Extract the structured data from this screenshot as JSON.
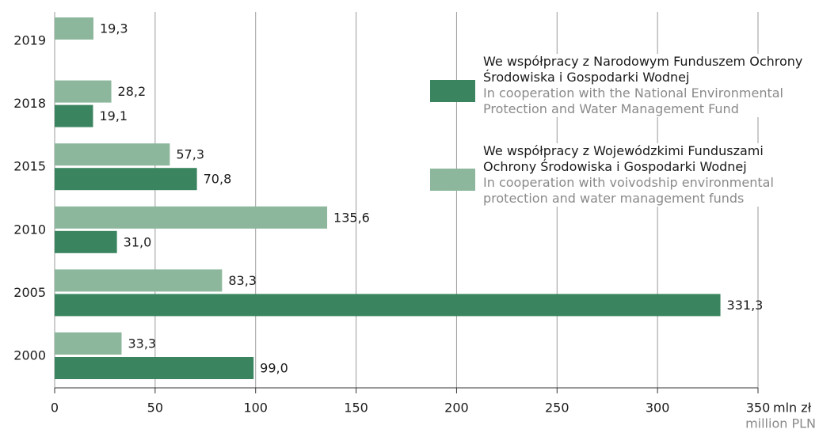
{
  "chart_data": {
    "type": "bar",
    "orientation": "horizontal",
    "categories": [
      "2019",
      "2018",
      "2015",
      "2010",
      "2005",
      "2000"
    ],
    "series": [
      {
        "name": "We współpracy z Wojewódzkimi Funduszami Ochrony Środowiska i Gospodarki Wodnej",
        "name_en": "In cooperation with voivodship environmental protection and water management funds",
        "color": "#8db79c",
        "values": [
          19.3,
          28.2,
          57.3,
          135.6,
          83.3,
          33.3
        ],
        "value_labels": [
          "19,3",
          "28,2",
          "57,3",
          "135,6",
          "83,3",
          "33,3"
        ]
      },
      {
        "name": "We współpracy z Narodowym Funduszem Ochrony Środowiska i Gospodarki Wodnej",
        "name_en": "In cooperation with the National Environmental Protection and Water Management Fund",
        "color": "#3a8560",
        "values": [
          null,
          19.1,
          70.8,
          31.0,
          331.3,
          99.0
        ],
        "value_labels": [
          null,
          "19,1",
          "70,8",
          "31,0",
          "331,3",
          "99,0"
        ]
      }
    ],
    "xlabel": "mln zł",
    "xlabel_en": "million PLN",
    "xlim": [
      0,
      350
    ],
    "xticks": [
      0,
      50,
      100,
      150,
      200,
      250,
      300,
      350
    ],
    "grid": true
  }
}
